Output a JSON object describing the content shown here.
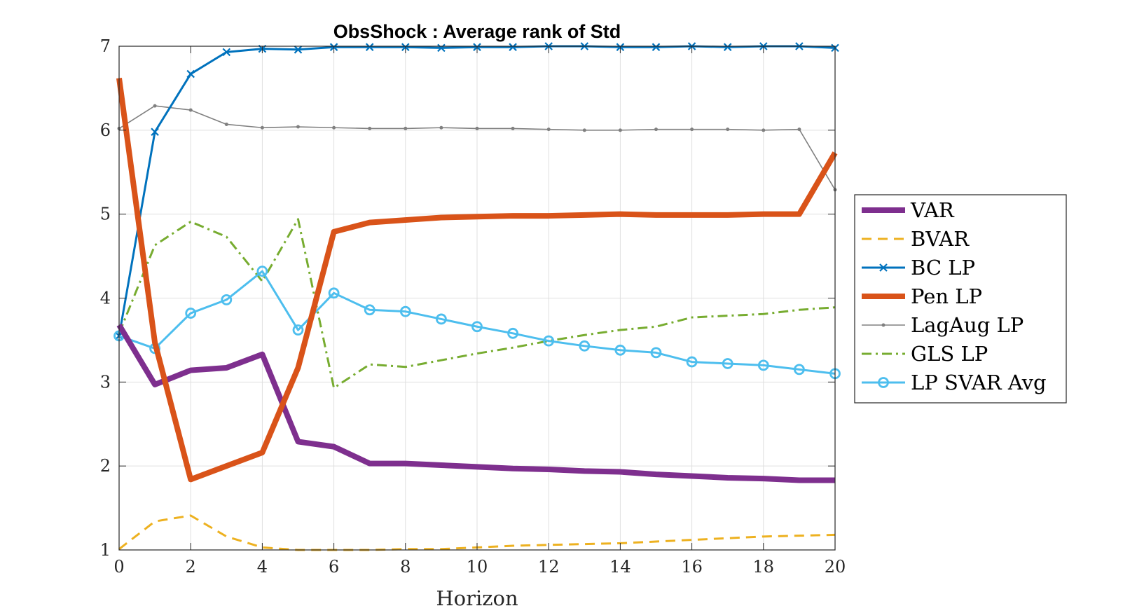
{
  "chart_data": {
    "type": "line",
    "title": "ObsShock : Average rank of Std",
    "xlabel": "Horizon",
    "ylabel": "",
    "xlim": [
      0,
      20
    ],
    "ylim": [
      1,
      7
    ],
    "xticks": [
      0,
      2,
      4,
      6,
      8,
      10,
      12,
      14,
      16,
      18,
      20
    ],
    "yticks": [
      1,
      2,
      3,
      4,
      5,
      6,
      7
    ],
    "grid": true,
    "legend_position": "right",
    "x": [
      0,
      1,
      2,
      3,
      4,
      5,
      6,
      7,
      8,
      9,
      10,
      11,
      12,
      13,
      14,
      15,
      16,
      17,
      18,
      19,
      20
    ],
    "series": [
      {
        "name": "VAR",
        "color": "#7E2F8E",
        "style": "solid-thick",
        "marker": "none",
        "values": [
          3.68,
          2.97,
          3.14,
          3.17,
          3.33,
          2.29,
          2.23,
          2.03,
          2.03,
          2.01,
          1.99,
          1.97,
          1.96,
          1.94,
          1.93,
          1.9,
          1.88,
          1.86,
          1.85,
          1.83,
          1.83
        ]
      },
      {
        "name": "BVAR",
        "color": "#EDB120",
        "style": "dashed",
        "marker": "none",
        "values": [
          1.01,
          1.34,
          1.41,
          1.16,
          1.03,
          1.0,
          1.0,
          1.0,
          1.01,
          1.01,
          1.03,
          1.05,
          1.06,
          1.07,
          1.08,
          1.1,
          1.12,
          1.14,
          1.16,
          1.17,
          1.18
        ]
      },
      {
        "name": "BC LP",
        "color": "#0072BD",
        "style": "solid",
        "marker": "x",
        "values": [
          3.55,
          5.98,
          6.67,
          6.93,
          6.97,
          6.96,
          6.99,
          6.99,
          6.99,
          6.98,
          6.99,
          6.99,
          7.0,
          7.0,
          6.99,
          6.99,
          7.0,
          6.99,
          7.0,
          7.0,
          6.98
        ]
      },
      {
        "name": "Pen LP",
        "color": "#D95319",
        "style": "solid-thick",
        "marker": "none",
        "values": [
          6.62,
          3.47,
          1.84,
          2.0,
          2.16,
          3.17,
          4.79,
          4.9,
          4.93,
          4.96,
          4.97,
          4.98,
          4.98,
          4.99,
          5.0,
          4.99,
          4.99,
          4.99,
          5.0,
          5.0,
          5.73
        ]
      },
      {
        "name": "LagAug LP",
        "color": "#808080",
        "style": "solid-thin",
        "marker": "dot",
        "values": [
          6.02,
          6.29,
          6.24,
          6.07,
          6.03,
          6.04,
          6.03,
          6.02,
          6.02,
          6.03,
          6.02,
          6.02,
          6.01,
          6.0,
          6.0,
          6.01,
          6.01,
          6.01,
          6.0,
          6.01,
          5.29
        ]
      },
      {
        "name": "GLS LP",
        "color": "#77AC30",
        "style": "dashdot",
        "marker": "none",
        "values": [
          3.58,
          4.63,
          4.91,
          4.73,
          4.2,
          4.94,
          2.93,
          3.21,
          3.18,
          3.26,
          3.34,
          3.41,
          3.49,
          3.56,
          3.62,
          3.66,
          3.77,
          3.79,
          3.81,
          3.86,
          3.89
        ]
      },
      {
        "name": "LP SVAR Avg",
        "color": "#4DBEEE",
        "style": "solid",
        "marker": "circle",
        "values": [
          3.55,
          3.4,
          3.82,
          3.98,
          4.32,
          3.62,
          4.06,
          3.86,
          3.84,
          3.75,
          3.66,
          3.58,
          3.49,
          3.43,
          3.38,
          3.35,
          3.24,
          3.22,
          3.2,
          3.15,
          3.1
        ]
      }
    ]
  }
}
